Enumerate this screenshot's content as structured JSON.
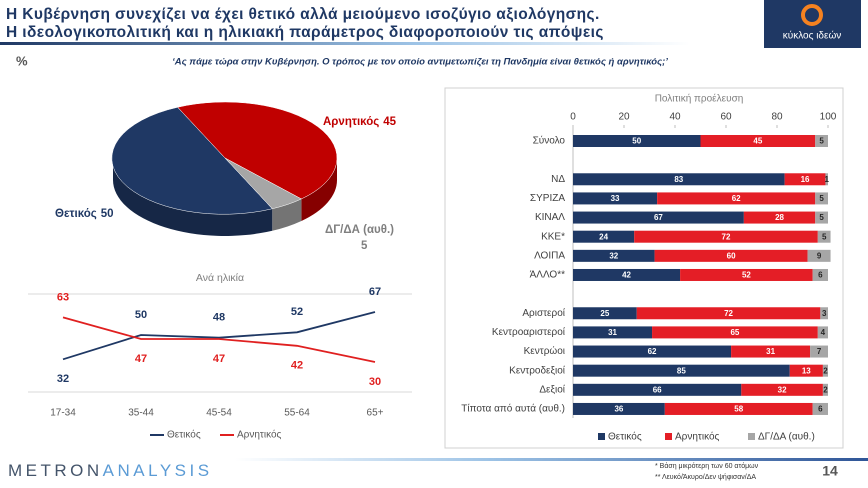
{
  "header": {
    "title_lines": [
      "Η Κυβέρνηση συνεχίζει να έχει θετικό αλλά μειούμενο ισοζύγιο αξιολόγησης.",
      "Η ιδεολογικοπολιτική και η ηλικιακή παράμετρος διαφοροποιούν τις απόψεις"
    ]
  },
  "logo": {
    "text": "κύκλος ιδεών"
  },
  "percent": "%",
  "question": "‘Ας πάμε τώρα στην Κυβέρνηση. Ο τρόπος με τον οποίο αντιμετωπίζει τη Πανδημία είναι θετικός ή αρνητικός;’",
  "chart_data": [
    {
      "type": "pie",
      "categories": [
        "Θετικός",
        "Αρνητικός",
        "ΔΓ/ΔΑ (αυθ.)"
      ],
      "values": [
        50,
        45,
        5
      ],
      "colors": [
        "#1f3864",
        "#c00000",
        "#a6a6a6"
      ]
    },
    {
      "type": "line",
      "title": "Ανά ηλικία",
      "categories": [
        "17-34",
        "35-44",
        "45-54",
        "55-64",
        "65+"
      ],
      "series": [
        {
          "name": "Θετικός",
          "color": "#1f3864",
          "values": [
            32,
            50,
            48,
            52,
            67
          ]
        },
        {
          "name": "Αρνητικός",
          "color": "#e02020",
          "values": [
            63,
            47,
            47,
            42,
            30
          ]
        }
      ]
    },
    {
      "type": "stacked-bar-horizontal",
      "title": "Πολιτική προέλευση",
      "categories": [
        "Σύνολο",
        null,
        "ΝΔ",
        "ΣΥΡΙΖΑ",
        "ΚΙΝΑΛ",
        "ΚΚΕ*",
        "ΛΟΙΠΑ",
        "ΆΛΛΟ**",
        null,
        "Αριστεροί",
        "Κεντροαριστεροί",
        "Κεντρώοι",
        "Κεντροδεξιοί",
        "Δεξιοί",
        "Τίποτα από αυτά (αυθ.)"
      ],
      "series": [
        {
          "name": "Θετικός",
          "color": "#1f3864",
          "values": [
            50,
            null,
            83,
            33,
            67,
            24,
            32,
            42,
            null,
            25,
            31,
            62,
            85,
            66,
            36
          ]
        },
        {
          "name": "Αρνητικός",
          "color": "#e41e26",
          "values": [
            45,
            null,
            16,
            62,
            28,
            72,
            60,
            52,
            null,
            72,
            65,
            31,
            13,
            32,
            58
          ]
        },
        {
          "name": "ΔΓ/ΔΑ (αυθ.)",
          "color": "#a6a6a6",
          "values": [
            5,
            null,
            1,
            5,
            5,
            5,
            9,
            6,
            null,
            3,
            4,
            7,
            2,
            2,
            6
          ]
        }
      ],
      "xlim": [
        0,
        100
      ],
      "xticks": [
        0,
        20,
        40,
        60,
        80,
        100
      ]
    }
  ],
  "footer": {
    "brand": [
      "METRON",
      "ANALYSIS"
    ],
    "notes": [
      "*  Βάση μικρότερη των 60 ατόμων",
      "** Λευκό/Άκυρο/Δεν ψήφισαν/ΔΑ"
    ],
    "page": "14"
  }
}
